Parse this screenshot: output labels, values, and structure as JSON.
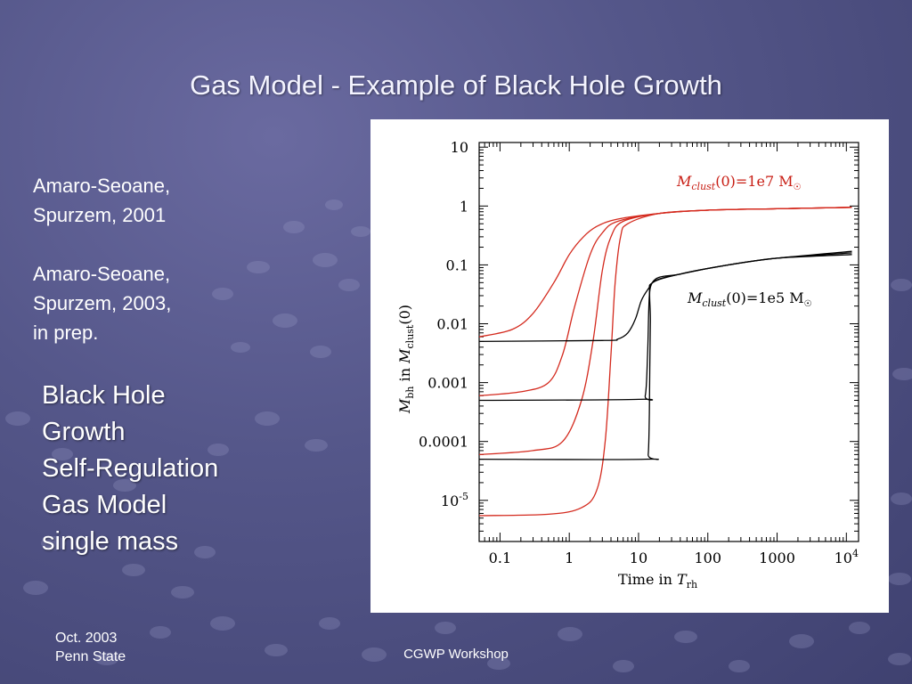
{
  "slide": {
    "title": "Gas Model - Example of Black Hole Growth",
    "references": [
      "Amaro-Seoane,",
      "Spurzem, 2001",
      "",
      "Amaro-Seoane,",
      "Spurzem, 2003,",
      "in prep."
    ],
    "topics": [
      "Black Hole",
      "Growth",
      "Self-Regulation",
      "Gas Model",
      "single mass"
    ],
    "footer_left": [
      "Oct. 2003",
      "Penn State"
    ],
    "footer_center": "CGWP Workshop"
  },
  "colors": {
    "background": "#55578a",
    "red_curves": "#d42a1e",
    "black_curves": "#000000",
    "annotation_red": "#c81e14"
  },
  "chart_data": {
    "type": "line",
    "x_scale": "log",
    "y_scale": "log",
    "xlim": [
      0.05,
      15000
    ],
    "ylim": [
      2e-06,
      12
    ],
    "x_ticks": [
      {
        "value": 0.1,
        "label": "0.1"
      },
      {
        "value": 1,
        "label": "1"
      },
      {
        "value": 10,
        "label": "10"
      },
      {
        "value": 100,
        "label": "100"
      },
      {
        "value": 1000,
        "label": "1000"
      },
      {
        "value": 10000,
        "label": "10^4"
      }
    ],
    "y_ticks": [
      {
        "value": 10,
        "label": "10"
      },
      {
        "value": 1,
        "label": "1"
      },
      {
        "value": 0.1,
        "label": "0.1"
      },
      {
        "value": 0.01,
        "label": "0.01"
      },
      {
        "value": 0.001,
        "label": "0.001"
      },
      {
        "value": 0.0001,
        "label": "0.0001"
      },
      {
        "value": 1e-05,
        "label": "10^-5"
      }
    ],
    "xlabel": "Time in T_rh",
    "ylabel": "M_bh in M_clust(0)",
    "annotations": [
      {
        "text": "M_clust(0)=1e7 M_sun",
        "color": "red"
      },
      {
        "text": "M_clust(0)=1e5 M_sun",
        "color": "black"
      }
    ],
    "series": [
      {
        "group": "Mclust(0)=1e7",
        "color": "red",
        "points": [
          [
            0.05,
            0.006
          ],
          [
            0.15,
            0.008
          ],
          [
            0.3,
            0.015
          ],
          [
            0.6,
            0.05
          ],
          [
            1,
            0.15
          ],
          [
            1.6,
            0.3
          ],
          [
            2.5,
            0.45
          ],
          [
            5,
            0.6
          ],
          [
            20,
            0.75
          ],
          [
            100,
            0.85
          ],
          [
            1000,
            0.9
          ],
          [
            12000,
            0.95
          ]
        ]
      },
      {
        "group": "Mclust(0)=1e7",
        "color": "red",
        "points": [
          [
            0.05,
            0.0006
          ],
          [
            0.2,
            0.0007
          ],
          [
            0.5,
            0.001
          ],
          [
            0.8,
            0.003
          ],
          [
            1.2,
            0.02
          ],
          [
            2,
            0.15
          ],
          [
            3,
            0.35
          ],
          [
            5,
            0.55
          ],
          [
            20,
            0.75
          ],
          [
            100,
            0.85
          ],
          [
            1000,
            0.9
          ],
          [
            12000,
            0.95
          ]
        ]
      },
      {
        "group": "Mclust(0)=1e7",
        "color": "red",
        "points": [
          [
            0.05,
            6e-05
          ],
          [
            0.3,
            7e-05
          ],
          [
            0.8,
            0.0001
          ],
          [
            1.5,
            0.0005
          ],
          [
            2.2,
            0.005
          ],
          [
            3,
            0.08
          ],
          [
            4,
            0.3
          ],
          [
            6,
            0.55
          ],
          [
            20,
            0.75
          ],
          [
            100,
            0.85
          ],
          [
            1000,
            0.9
          ],
          [
            12000,
            0.95
          ]
        ]
      },
      {
        "group": "Mclust(0)=1e7",
        "color": "red",
        "points": [
          [
            0.05,
            5.5e-06
          ],
          [
            0.5,
            5.8e-06
          ],
          [
            1.5,
            7.5e-06
          ],
          [
            2.5,
            1.5e-05
          ],
          [
            3.3,
            0.0001
          ],
          [
            4,
            0.003
          ],
          [
            4.6,
            0.05
          ],
          [
            5.5,
            0.3
          ],
          [
            7,
            0.5
          ],
          [
            20,
            0.75
          ],
          [
            100,
            0.85
          ],
          [
            1000,
            0.9
          ],
          [
            12000,
            0.95
          ]
        ]
      },
      {
        "group": "Mclust(0)=1e5",
        "color": "black",
        "points": [
          [
            0.05,
            0.005
          ],
          [
            3,
            0.0052
          ],
          [
            5,
            0.0055
          ],
          [
            7,
            0.007
          ],
          [
            9,
            0.012
          ],
          [
            11,
            0.025
          ],
          [
            14,
            0.04
          ],
          [
            18,
            0.055
          ],
          [
            40,
            0.07
          ],
          [
            200,
            0.1
          ],
          [
            1000,
            0.13
          ],
          [
            12000,
            0.17
          ]
        ]
      },
      {
        "group": "Mclust(0)=1e5",
        "color": "black",
        "points": [
          [
            0.05,
            0.0005
          ],
          [
            10,
            0.00052
          ],
          [
            12.5,
            0.0006
          ],
          [
            13.5,
            0.003
          ],
          [
            14.3,
            0.03
          ],
          [
            16,
            0.05
          ],
          [
            40,
            0.07
          ],
          [
            200,
            0.1
          ],
          [
            1000,
            0.13
          ],
          [
            12000,
            0.16
          ]
        ]
      },
      {
        "group": "Mclust(0)=1e5",
        "color": "black",
        "points": [
          [
            0.05,
            5e-05
          ],
          [
            12.5,
            5e-05
          ],
          [
            13.8,
            6e-05
          ],
          [
            14.3,
            0.0003
          ],
          [
            14.8,
            0.01
          ],
          [
            15.8,
            0.05
          ],
          [
            40,
            0.07
          ],
          [
            200,
            0.1
          ],
          [
            1000,
            0.13
          ],
          [
            12000,
            0.15
          ]
        ]
      }
    ]
  }
}
